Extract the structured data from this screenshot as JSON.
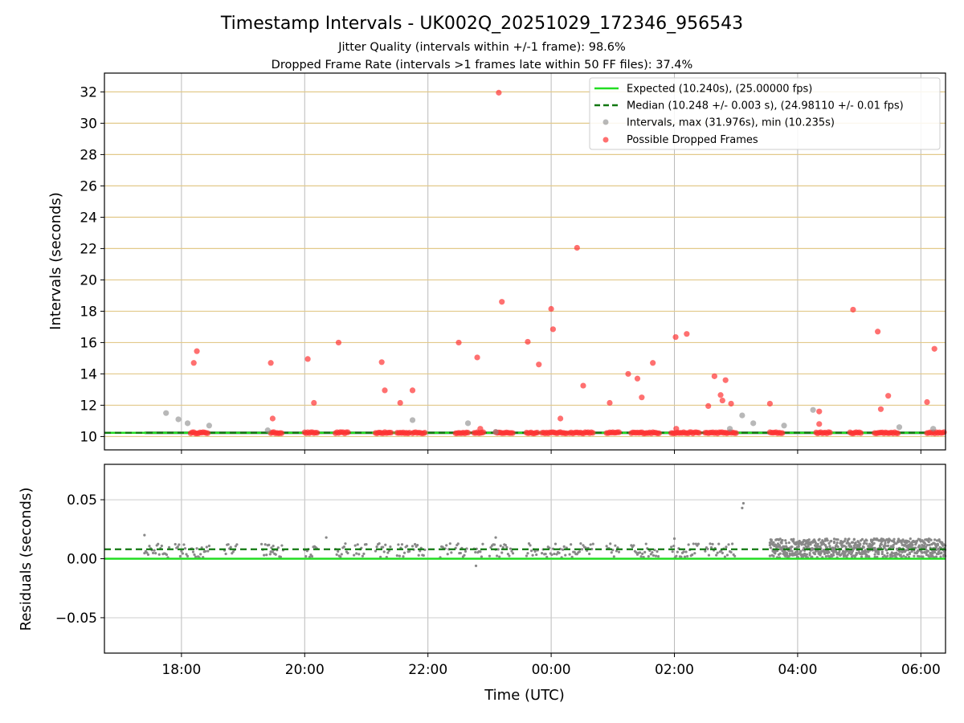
{
  "chart_data": {
    "type": "scatter",
    "title": "Timestamp Intervals - UK002Q_20251029_172346_956543",
    "subtitle_1": "Jitter Quality (intervals within +/-1 frame): 98.6%",
    "subtitle_2": "Dropped Frame Rate (intervals >1 frames late within 50 FF files): 37.4%",
    "xlabel": "Time (UTC)",
    "x_unit": "hours since 00:00 UTC",
    "xlim": [
      -7.25,
      6.4
    ],
    "x_ticks": [
      {
        "value": -6,
        "label": "18:00"
      },
      {
        "value": -4,
        "label": "20:00"
      },
      {
        "value": -2,
        "label": "22:00"
      },
      {
        "value": 0,
        "label": "00:00"
      },
      {
        "value": 2,
        "label": "02:00"
      },
      {
        "value": 4,
        "label": "04:00"
      },
      {
        "value": 6,
        "label": "06:00"
      }
    ],
    "top": {
      "ylabel": "Intervals (seconds)",
      "ylim": [
        9.15,
        33.2
      ],
      "y_ticks": [
        10,
        12,
        14,
        16,
        18,
        20,
        22,
        24,
        26,
        28,
        30,
        32
      ],
      "expected": 10.24,
      "median": 10.248,
      "legend": [
        "Expected (10.240s), (25.00000 fps)",
        "Median (10.248 +/- 0.003 s), (24.98110 +/- 0.01 fps)",
        "Intervals, max (31.976s), min (10.235s)",
        "Possible Dropped Frames"
      ],
      "interval_outliers": [
        [
          -6.25,
          11.5
        ],
        [
          -6.05,
          11.1
        ],
        [
          -5.9,
          10.85
        ],
        [
          -5.55,
          10.7
        ],
        [
          -4.6,
          10.4
        ],
        [
          -2.25,
          11.05
        ],
        [
          -1.35,
          10.85
        ],
        [
          -0.9,
          10.3
        ],
        [
          2.9,
          10.5
        ],
        [
          3.1,
          11.35
        ],
        [
          3.28,
          10.85
        ],
        [
          3.78,
          10.7
        ],
        [
          4.25,
          11.7
        ],
        [
          5.65,
          10.6
        ],
        [
          6.2,
          10.5
        ]
      ],
      "dropped_outliers": [
        [
          -5.8,
          14.7
        ],
        [
          -5.75,
          15.45
        ],
        [
          -4.55,
          14.7
        ],
        [
          -4.52,
          11.15
        ],
        [
          -3.95,
          14.95
        ],
        [
          -3.85,
          12.15
        ],
        [
          -3.45,
          16.0
        ],
        [
          -2.75,
          14.75
        ],
        [
          -2.7,
          12.95
        ],
        [
          -2.45,
          12.15
        ],
        [
          -2.25,
          12.95
        ],
        [
          -1.5,
          16.0
        ],
        [
          -1.2,
          15.05
        ],
        [
          -1.15,
          10.5
        ],
        [
          -0.85,
          31.95
        ],
        [
          -0.8,
          18.6
        ],
        [
          -0.38,
          16.05
        ],
        [
          -0.2,
          14.6
        ],
        [
          0.0,
          18.15
        ],
        [
          0.03,
          16.85
        ],
        [
          0.15,
          11.15
        ],
        [
          0.42,
          22.05
        ],
        [
          0.52,
          13.25
        ],
        [
          0.95,
          12.15
        ],
        [
          1.25,
          14.0
        ],
        [
          1.4,
          13.7
        ],
        [
          1.47,
          12.5
        ],
        [
          1.65,
          14.7
        ],
        [
          2.02,
          16.35
        ],
        [
          2.03,
          10.5
        ],
        [
          2.2,
          16.55
        ],
        [
          2.55,
          11.95
        ],
        [
          2.65,
          13.85
        ],
        [
          2.75,
          12.65
        ],
        [
          2.78,
          12.3
        ],
        [
          2.83,
          13.6
        ],
        [
          2.92,
          12.1
        ],
        [
          3.55,
          12.1
        ],
        [
          4.35,
          11.6
        ],
        [
          4.35,
          10.8
        ],
        [
          4.9,
          18.1
        ],
        [
          5.3,
          16.7
        ],
        [
          5.35,
          11.75
        ],
        [
          5.47,
          12.6
        ],
        [
          6.1,
          12.2
        ],
        [
          6.22,
          15.6
        ]
      ],
      "dropped_clusters": [
        [
          -5.85,
          -5.55
        ],
        [
          -4.55,
          -4.35
        ],
        [
          -4.0,
          -3.8
        ],
        [
          -3.5,
          -3.3
        ],
        [
          -2.85,
          -2.6
        ],
        [
          -2.5,
          -2.3
        ],
        [
          -2.25,
          -2.05
        ],
        [
          -1.55,
          -1.35
        ],
        [
          -1.25,
          -1.1
        ],
        [
          -0.9,
          -0.6
        ],
        [
          -0.4,
          -0.2
        ],
        [
          -0.15,
          0.25
        ],
        [
          0.3,
          0.7
        ],
        [
          0.9,
          1.1
        ],
        [
          1.3,
          1.75
        ],
        [
          1.95,
          2.4
        ],
        [
          2.5,
          3.0
        ],
        [
          3.55,
          3.75
        ],
        [
          4.3,
          4.55
        ],
        [
          4.85,
          5.05
        ],
        [
          5.25,
          5.65
        ],
        [
          6.1,
          6.4
        ]
      ],
      "band_start": -6.6,
      "band_end": 6.4
    },
    "bottom": {
      "ylabel": "Residuals (seconds)",
      "ylim": [
        -0.08,
        0.08
      ],
      "y_ticks": [
        {
          "value": -0.05,
          "label": "−0.05"
        },
        {
          "value": 0,
          "label": "0.00"
        },
        {
          "value": 0.05,
          "label": "0.05"
        }
      ],
      "expected": 0.0,
      "median": 0.008,
      "spread_change_x": 3.55,
      "outliers": [
        [
          3.1,
          0.043
        ],
        [
          3.12,
          0.047
        ],
        [
          -6.6,
          0.02
        ],
        [
          -1.22,
          -0.006
        ],
        [
          -0.9,
          0.018
        ],
        [
          2.0,
          0.017
        ],
        [
          -3.65,
          0.018
        ]
      ]
    },
    "colors": {
      "expected": "#22dd22",
      "median": "#117711",
      "intervals": "#888888",
      "dropped": "#ff3333",
      "grid_top": "#e2c98a",
      "grid_bottom": "#cccccc"
    }
  }
}
